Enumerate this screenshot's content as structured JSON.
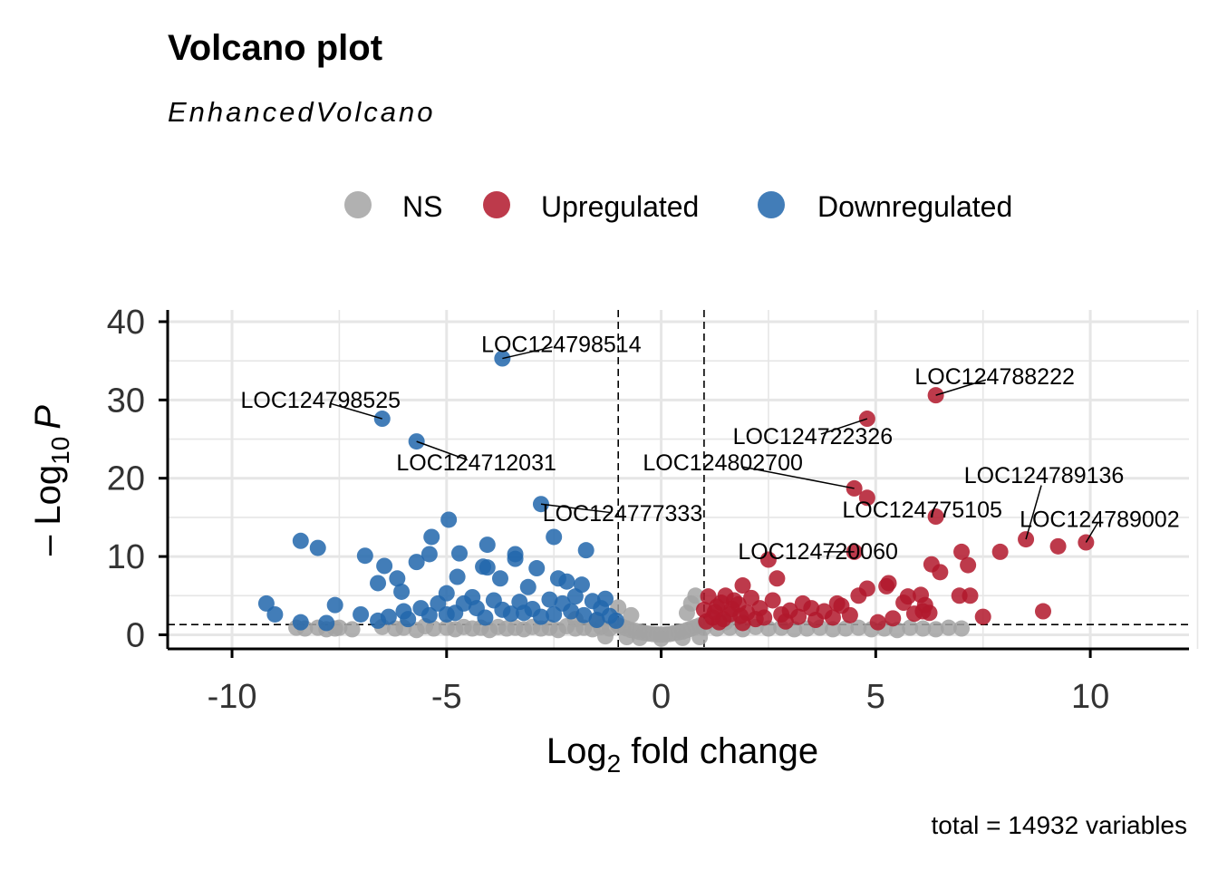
{
  "chart_data": {
    "type": "scatter",
    "title": "Volcano plot",
    "subtitle": "EnhancedVolcano",
    "caption": "total = 14932 variables",
    "xlabel_main": "Log",
    "xlabel_sub": "2",
    "xlabel_rest": " fold change",
    "ylabel_prefix": "– Log",
    "ylabel_sub": "10",
    "ylabel_var": "P",
    "xlim": [
      -11.5,
      12.3
    ],
    "ylim": [
      -1.8,
      41.5
    ],
    "x_ticks": [
      -10,
      -5,
      0,
      5,
      10
    ],
    "x_tick_labels": [
      "-10",
      "-5",
      "0",
      "5",
      "10"
    ],
    "y_ticks": [
      0,
      10,
      20,
      30,
      40
    ],
    "y_tick_labels": [
      "0",
      "10",
      "20",
      "30",
      "40"
    ],
    "fc_cutoff": 1,
    "p_cutoff_log10": 1.3,
    "grid": true,
    "legend_position": "top",
    "colors": {
      "NS": "#a3a3a3",
      "Upregulated": "#b2182b",
      "Downregulated": "#2166ac"
    },
    "legend": [
      {
        "key": "NS",
        "label": "NS",
        "color": "#a3a3a3"
      },
      {
        "key": "Upregulated",
        "label": "Upregulated",
        "color": "#b2182b"
      },
      {
        "key": "Downregulated",
        "label": "Downregulated",
        "color": "#2166ac"
      }
    ],
    "series": [
      {
        "name": "NS",
        "points": [
          [
            -8.5,
            0.9
          ],
          [
            -8.3,
            0.8
          ],
          [
            -8.0,
            0.9
          ],
          [
            -7.8,
            0.7
          ],
          [
            -7.6,
            0.8
          ],
          [
            -6.5,
            1.0
          ],
          [
            -6.2,
            0.8
          ],
          [
            -6.0,
            0.9
          ],
          [
            -5.7,
            0.6
          ],
          [
            -5.5,
            1.1
          ],
          [
            -5.3,
            0.8
          ],
          [
            -5.0,
            0.9
          ],
          [
            -4.8,
            0.7
          ],
          [
            -4.6,
            1.0
          ],
          [
            -4.4,
            0.8
          ],
          [
            -4.2,
            0.9
          ],
          [
            -4.0,
            0.6
          ],
          [
            -3.8,
            1.0
          ],
          [
            -3.6,
            0.8
          ],
          [
            -3.4,
            0.9
          ],
          [
            -3.2,
            0.7
          ],
          [
            -3.0,
            1.0
          ],
          [
            -2.8,
            0.8
          ],
          [
            -2.6,
            0.9
          ],
          [
            -2.4,
            0.6
          ],
          [
            -2.2,
            1.1
          ],
          [
            -2.0,
            0.8
          ],
          [
            -1.8,
            0.9
          ],
          [
            -1.6,
            0.7
          ],
          [
            -1.4,
            1.0
          ],
          [
            -1.2,
            0.8
          ],
          [
            -1.0,
            1.2
          ],
          [
            -0.9,
            1.0
          ],
          [
            -0.8,
            0.8
          ],
          [
            -0.7,
            0.6
          ],
          [
            -0.6,
            0.5
          ],
          [
            -0.5,
            0.35
          ],
          [
            -0.4,
            0.25
          ],
          [
            -0.3,
            0.15
          ],
          [
            -0.2,
            0.1
          ],
          [
            -0.1,
            0.05
          ],
          [
            0.0,
            0.02
          ],
          [
            0.1,
            0.05
          ],
          [
            0.2,
            0.1
          ],
          [
            0.3,
            0.2
          ],
          [
            0.4,
            0.3
          ],
          [
            0.5,
            0.4
          ],
          [
            0.6,
            0.6
          ],
          [
            0.7,
            0.8
          ],
          [
            0.8,
            1.0
          ],
          [
            0.9,
            1.2
          ],
          [
            1.0,
            0.9
          ],
          [
            1.3,
            0.8
          ],
          [
            1.6,
            0.9
          ],
          [
            1.9,
            0.7
          ],
          [
            2.2,
            1.0
          ],
          [
            2.5,
            0.8
          ],
          [
            2.8,
            0.9
          ],
          [
            3.1,
            0.7
          ],
          [
            3.4,
            0.8
          ],
          [
            3.7,
            0.9
          ],
          [
            4.0,
            0.7
          ],
          [
            4.3,
            0.8
          ],
          [
            4.6,
            0.9
          ],
          [
            4.9,
            0.7
          ],
          [
            5.2,
            0.8
          ],
          [
            5.5,
            0.6
          ],
          [
            5.8,
            0.9
          ],
          [
            6.1,
            0.8
          ],
          [
            6.4,
            0.7
          ],
          [
            6.7,
            0.9
          ],
          [
            7.0,
            0.8
          ],
          [
            -1.3,
            -0.2
          ],
          [
            -0.8,
            -0.3
          ],
          [
            -0.5,
            -0.4
          ],
          [
            0.0,
            -0.5
          ],
          [
            0.5,
            -0.4
          ],
          [
            0.9,
            -0.3
          ],
          [
            -2.0,
            2.0
          ],
          [
            -1.5,
            1.8
          ],
          [
            1.5,
            1.6
          ],
          [
            0.7,
            4.0
          ],
          [
            0.8,
            5.0
          ],
          [
            -1.0,
            3.5
          ],
          [
            -0.7,
            2.5
          ],
          [
            0.6,
            2.8
          ],
          [
            -7.5,
            0.9
          ],
          [
            -7.2,
            0.7
          ]
        ]
      },
      {
        "name": "Upregulated",
        "points": [
          [
            6.4,
            30.6
          ],
          [
            4.8,
            27.6
          ],
          [
            4.5,
            18.7
          ],
          [
            4.8,
            17.5
          ],
          [
            6.4,
            15.1
          ],
          [
            8.5,
            12.2
          ],
          [
            9.9,
            11.8
          ],
          [
            9.25,
            11.3
          ],
          [
            4.5,
            10.6
          ],
          [
            7.9,
            10.6
          ],
          [
            7.0,
            10.6
          ],
          [
            2.5,
            9.6
          ],
          [
            6.3,
            9.0
          ],
          [
            7.15,
            8.9
          ],
          [
            6.5,
            8.0
          ],
          [
            2.7,
            7.2
          ],
          [
            1.9,
            6.3
          ],
          [
            5.3,
            6.6
          ],
          [
            5.25,
            6.2
          ],
          [
            4.8,
            5.9
          ],
          [
            6.05,
            5.1
          ],
          [
            5.75,
            4.9
          ],
          [
            6.95,
            5.0
          ],
          [
            7.2,
            5.0
          ],
          [
            4.6,
            5.0
          ],
          [
            5.65,
            4.1
          ],
          [
            6.15,
            3.8
          ],
          [
            6.1,
            3.0
          ],
          [
            5.9,
            2.7
          ],
          [
            6.25,
            2.8
          ],
          [
            8.9,
            3.0
          ],
          [
            7.5,
            2.3
          ],
          [
            5.05,
            1.6
          ],
          [
            4.2,
            3.7
          ],
          [
            3.5,
            3.4
          ],
          [
            3.0,
            3.1
          ],
          [
            2.6,
            4.4
          ],
          [
            2.3,
            3.4
          ],
          [
            2.0,
            2.8
          ],
          [
            1.8,
            3.9
          ],
          [
            1.6,
            2.6
          ],
          [
            1.4,
            4.1
          ],
          [
            1.2,
            2.2
          ],
          [
            1.1,
            4.9
          ],
          [
            1.3,
            3.6
          ],
          [
            1.5,
            5.0
          ],
          [
            1.7,
            4.4
          ],
          [
            2.1,
            4.7
          ],
          [
            2.4,
            2.2
          ],
          [
            2.8,
            2.6
          ],
          [
            3.2,
            2.3
          ],
          [
            3.8,
            3.0
          ],
          [
            4.0,
            2.2
          ],
          [
            1.05,
            1.7
          ],
          [
            1.25,
            2.9
          ],
          [
            1.45,
            2.0
          ],
          [
            1.65,
            3.3
          ],
          [
            1.85,
            2.4
          ],
          [
            2.2,
            2.0
          ],
          [
            2.9,
            1.7
          ],
          [
            3.6,
            1.9
          ],
          [
            4.4,
            2.5
          ],
          [
            5.4,
            2.1
          ],
          [
            1.0,
            3.2
          ],
          [
            1.35,
            1.6
          ],
          [
            1.9,
            1.5
          ],
          [
            3.3,
            4.0
          ],
          [
            4.1,
            4.0
          ]
        ]
      },
      {
        "name": "Downregulated",
        "points": [
          [
            -3.7,
            35.3
          ],
          [
            -6.5,
            27.6
          ],
          [
            -5.7,
            24.7
          ],
          [
            -2.8,
            16.7
          ],
          [
            -4.95,
            14.7
          ],
          [
            -2.5,
            12.5
          ],
          [
            -5.35,
            12.5
          ],
          [
            -8.4,
            12.0
          ],
          [
            -8.0,
            11.1
          ],
          [
            -4.05,
            11.5
          ],
          [
            -1.75,
            10.8
          ],
          [
            -4.7,
            10.4
          ],
          [
            -5.4,
            10.3
          ],
          [
            -3.4,
            10.3
          ],
          [
            -6.9,
            10.1
          ],
          [
            -5.7,
            9.3
          ],
          [
            -3.4,
            9.7
          ],
          [
            -6.45,
            8.8
          ],
          [
            -4.15,
            8.7
          ],
          [
            -4.05,
            8.6
          ],
          [
            -2.9,
            8.5
          ],
          [
            -6.15,
            7.2
          ],
          [
            -4.75,
            7.4
          ],
          [
            -3.75,
            7.2
          ],
          [
            -2.4,
            7.2
          ],
          [
            -6.6,
            6.6
          ],
          [
            -6.05,
            5.5
          ],
          [
            -5.0,
            5.3
          ],
          [
            -3.1,
            6.1
          ],
          [
            -2.2,
            6.8
          ],
          [
            -1.85,
            6.4
          ],
          [
            -9.2,
            4.0
          ],
          [
            -7.6,
            3.8
          ],
          [
            -9.0,
            2.6
          ],
          [
            -7.0,
            2.6
          ],
          [
            -8.4,
            1.6
          ],
          [
            -7.8,
            1.5
          ],
          [
            -6.35,
            2.3
          ],
          [
            -5.9,
            2.0
          ],
          [
            -5.4,
            2.5
          ],
          [
            -4.3,
            3.4
          ],
          [
            -3.9,
            4.4
          ],
          [
            -3.5,
            2.7
          ],
          [
            -3.0,
            3.3
          ],
          [
            -2.6,
            4.5
          ],
          [
            -2.1,
            3.0
          ],
          [
            -1.6,
            4.3
          ],
          [
            -1.4,
            3.4
          ],
          [
            -1.2,
            2.4
          ],
          [
            -1.05,
            1.8
          ],
          [
            -1.3,
            4.6
          ],
          [
            -1.8,
            2.5
          ],
          [
            -2.3,
            4.0
          ],
          [
            -2.8,
            2.3
          ],
          [
            -3.3,
            4.2
          ],
          [
            -3.7,
            3.2
          ],
          [
            -4.1,
            2.2
          ],
          [
            -4.6,
            4.0
          ],
          [
            -5.0,
            2.6
          ],
          [
            -5.6,
            3.4
          ],
          [
            -6.0,
            3.0
          ],
          [
            -6.6,
            1.8
          ],
          [
            -4.8,
            2.8
          ],
          [
            -3.2,
            2.8
          ],
          [
            -2.5,
            2.6
          ],
          [
            -1.5,
            1.9
          ],
          [
            -2.0,
            4.9
          ],
          [
            -4.4,
            4.8
          ],
          [
            -5.2,
            4.0
          ]
        ]
      }
    ],
    "labels": [
      {
        "text": "LOC124798514",
        "x": -3.7,
        "y": 35.3
      },
      {
        "text": "LOC124798525",
        "x": -6.5,
        "y": 27.6
      },
      {
        "text": "LOC124712031",
        "x": -5.7,
        "y": 24.7
      },
      {
        "text": "LOC124777333",
        "x": -2.8,
        "y": 16.7
      },
      {
        "text": "LOC124788222",
        "x": 6.4,
        "y": 30.6
      },
      {
        "text": "LOC124722326",
        "x": 4.8,
        "y": 27.6
      },
      {
        "text": "LOC124802700",
        "x": 4.5,
        "y": 18.7
      },
      {
        "text": "LOC124789136",
        "x": 8.5,
        "y": 12.2
      },
      {
        "text": "LOC124775105",
        "x": 6.4,
        "y": 15.1
      },
      {
        "text": "LOC124789002",
        "x": 9.9,
        "y": 11.8
      },
      {
        "text": "LOC124720060",
        "x": 4.5,
        "y": 10.6
      }
    ]
  }
}
